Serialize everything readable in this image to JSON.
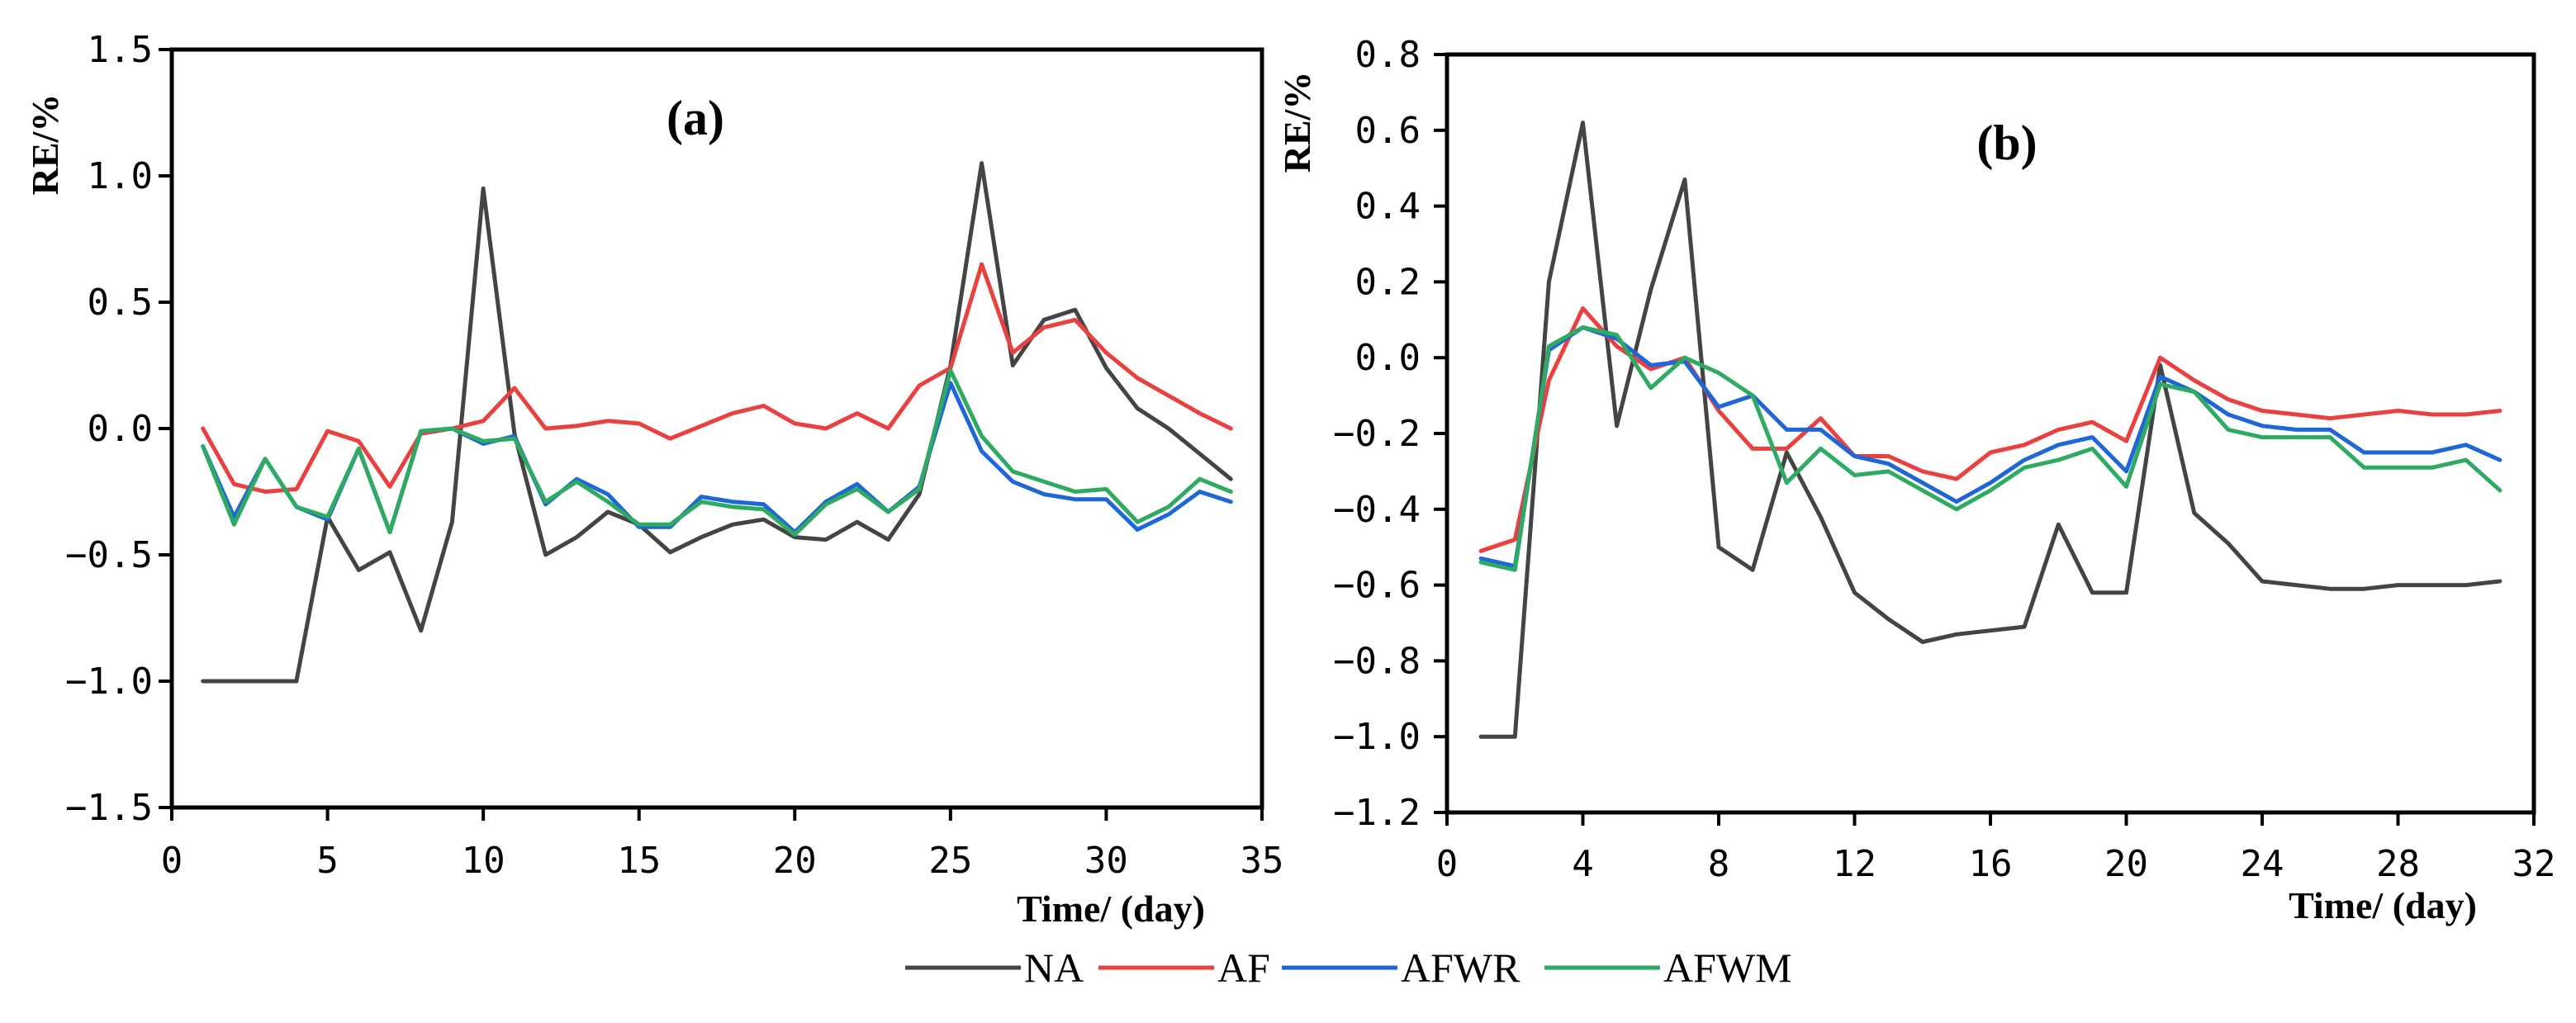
{
  "legend": [
    "NA",
    "AF",
    "AFWR",
    "AFWM"
  ],
  "colors": {
    "NA": "#444444",
    "AF": "#e8413f",
    "AFWR": "#1f66d6",
    "AFWM": "#2eaa63"
  },
  "chart_data": [
    {
      "type": "line",
      "title": "(a)",
      "xlabel": "Time/ (day)",
      "ylabel": "RE/%",
      "xlim": [
        0,
        35
      ],
      "ylim": [
        -1.5,
        1.5
      ],
      "xticks": [
        0,
        5,
        10,
        15,
        20,
        25,
        30,
        35
      ],
      "xtick_labels": [
        "0",
        "5",
        "10",
        "15",
        "20",
        "25",
        "30",
        "35"
      ],
      "yticks": [
        -1.5,
        -1.0,
        -0.5,
        0.0,
        0.5,
        1.0,
        1.5
      ],
      "ytick_labels": [
        "−1.5",
        "−1.0",
        "−0.5",
        "0.0",
        "0.5",
        "1.0",
        "1.5"
      ],
      "x": [
        1,
        2,
        3,
        4,
        5,
        6,
        7,
        8,
        9,
        10,
        11,
        12,
        13,
        14,
        15,
        16,
        17,
        18,
        19,
        20,
        21,
        22,
        23,
        24,
        25,
        26,
        27,
        28,
        29,
        30,
        31,
        32,
        33,
        34
      ],
      "series": [
        {
          "name": "NA",
          "values": [
            -1.0,
            -1.0,
            -1.0,
            -1.0,
            -0.35,
            -0.56,
            -0.49,
            -0.8,
            -0.37,
            0.95,
            -0.02,
            -0.5,
            -0.43,
            -0.33,
            -0.38,
            -0.49,
            -0.43,
            -0.38,
            -0.36,
            -0.43,
            -0.44,
            -0.37,
            -0.44,
            -0.26,
            0.25,
            1.05,
            0.25,
            0.43,
            0.47,
            0.24,
            0.08,
            0.0,
            -0.1,
            -0.2
          ]
        },
        {
          "name": "AF",
          "values": [
            0.0,
            -0.22,
            -0.25,
            -0.24,
            -0.01,
            -0.05,
            -0.23,
            -0.02,
            0.0,
            0.03,
            0.16,
            0.0,
            0.01,
            0.03,
            0.02,
            -0.04,
            0.01,
            0.06,
            0.09,
            0.02,
            0.0,
            0.06,
            0.0,
            0.17,
            0.24,
            0.65,
            0.3,
            0.4,
            0.43,
            0.3,
            0.2,
            0.13,
            0.06,
            0.0
          ]
        },
        {
          "name": "AFWR",
          "values": [
            -0.07,
            -0.35,
            -0.12,
            -0.31,
            -0.36,
            -0.08,
            -0.41,
            -0.01,
            0.0,
            -0.06,
            -0.03,
            -0.3,
            -0.2,
            -0.26,
            -0.39,
            -0.39,
            -0.27,
            -0.29,
            -0.3,
            -0.41,
            -0.29,
            -0.22,
            -0.33,
            -0.23,
            0.18,
            -0.09,
            -0.21,
            -0.26,
            -0.28,
            -0.28,
            -0.4,
            -0.34,
            -0.25,
            -0.29
          ]
        },
        {
          "name": "AFWM",
          "values": [
            -0.07,
            -0.38,
            -0.12,
            -0.31,
            -0.35,
            -0.08,
            -0.41,
            -0.01,
            0.0,
            -0.05,
            -0.04,
            -0.29,
            -0.21,
            -0.29,
            -0.38,
            -0.38,
            -0.29,
            -0.31,
            -0.32,
            -0.42,
            -0.3,
            -0.24,
            -0.33,
            -0.24,
            0.23,
            -0.03,
            -0.17,
            -0.21,
            -0.25,
            -0.24,
            -0.37,
            -0.31,
            -0.2,
            -0.25
          ]
        }
      ]
    },
    {
      "type": "line",
      "title": "(b)",
      "xlabel": "Time/ (day)",
      "ylabel": "RE/%",
      "xlim": [
        0,
        32
      ],
      "ylim": [
        -1.2,
        0.8
      ],
      "xticks": [
        0,
        4,
        8,
        12,
        16,
        20,
        24,
        28,
        32
      ],
      "xtick_labels": [
        "0",
        "4",
        "8",
        "12",
        "16",
        "20",
        "24",
        "28",
        "32"
      ],
      "yticks": [
        -1.2,
        -1.0,
        -0.8,
        -0.6,
        -0.4,
        -0.2,
        0.0,
        0.2,
        0.4,
        0.6,
        0.8
      ],
      "ytick_labels": [
        "−1.2",
        "−1.0",
        "−0.8",
        "−0.6",
        "−0.4",
        "−0.2",
        "0.0",
        "0.2",
        "0.4",
        "0.6",
        "0.8"
      ],
      "x": [
        1,
        2,
        3,
        4,
        5,
        6,
        7,
        8,
        9,
        10,
        11,
        12,
        13,
        14,
        15,
        16,
        17,
        18,
        19,
        20,
        21,
        22,
        23,
        24,
        25,
        26,
        27,
        28,
        29,
        30,
        31
      ],
      "series": [
        {
          "name": "NA",
          "values": [
            -1.0,
            -1.0,
            0.2,
            0.62,
            -0.18,
            0.18,
            0.47,
            -0.5,
            -0.56,
            -0.25,
            -0.42,
            -0.62,
            -0.69,
            -0.75,
            -0.73,
            -0.72,
            -0.71,
            -0.44,
            -0.62,
            -0.62,
            -0.02,
            -0.41,
            -0.49,
            -0.59,
            -0.6,
            -0.61,
            -0.61,
            -0.6,
            -0.6,
            -0.6,
            -0.59
          ]
        },
        {
          "name": "AF",
          "values": [
            -0.51,
            -0.48,
            -0.06,
            0.13,
            0.03,
            -0.03,
            0.0,
            -0.14,
            -0.24,
            -0.24,
            -0.16,
            -0.26,
            -0.26,
            -0.3,
            -0.32,
            -0.25,
            -0.23,
            -0.19,
            -0.17,
            -0.22,
            0.0,
            -0.06,
            -0.11,
            -0.14,
            -0.15,
            -0.16,
            -0.15,
            -0.14,
            -0.15,
            -0.15,
            -0.14
          ]
        },
        {
          "name": "AFWR",
          "values": [
            -0.53,
            -0.55,
            0.02,
            0.08,
            0.05,
            -0.02,
            -0.01,
            -0.13,
            -0.1,
            -0.19,
            -0.19,
            -0.26,
            -0.28,
            -0.33,
            -0.38,
            -0.33,
            -0.27,
            -0.23,
            -0.21,
            -0.3,
            -0.05,
            -0.09,
            -0.15,
            -0.18,
            -0.19,
            -0.19,
            -0.25,
            -0.25,
            -0.25,
            -0.23,
            -0.27
          ]
        },
        {
          "name": "AFWM",
          "values": [
            -0.54,
            -0.56,
            0.03,
            0.08,
            0.06,
            -0.08,
            0.0,
            -0.04,
            -0.1,
            -0.33,
            -0.24,
            -0.31,
            -0.3,
            -0.35,
            -0.4,
            -0.35,
            -0.29,
            -0.27,
            -0.24,
            -0.34,
            -0.07,
            -0.09,
            -0.19,
            -0.21,
            -0.21,
            -0.21,
            -0.29,
            -0.29,
            -0.29,
            -0.27,
            -0.35
          ]
        }
      ]
    }
  ]
}
